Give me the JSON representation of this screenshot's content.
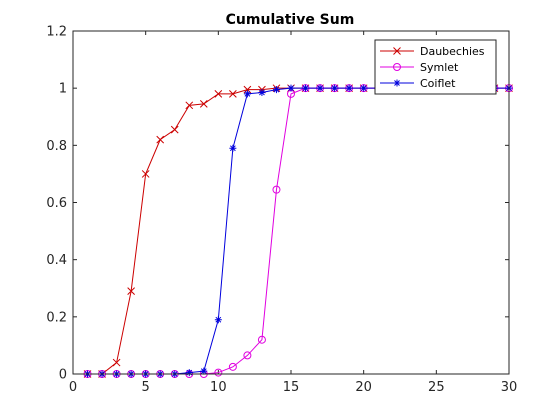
{
  "chart_data": {
    "type": "line",
    "title": "Cumulative Sum",
    "xlabel": "",
    "ylabel": "",
    "xlim": [
      0,
      30
    ],
    "ylim": [
      0,
      1.2
    ],
    "xticks": [
      "0",
      "5",
      "10",
      "15",
      "20",
      "25",
      "30"
    ],
    "yticks": [
      "0",
      "0.2",
      "0.4",
      "0.6",
      "0.8",
      "1",
      "1.2"
    ],
    "grid": false,
    "legend": "top-right",
    "x": [
      1,
      2,
      3,
      4,
      5,
      6,
      7,
      8,
      9,
      10,
      11,
      12,
      13,
      14,
      15,
      16,
      17,
      18,
      19,
      20,
      21,
      22,
      23,
      24,
      25,
      26,
      27,
      28,
      29,
      30
    ],
    "series": [
      {
        "name": "Daubechies",
        "color": "#cc0000",
        "marker": "x",
        "values": [
          0,
          0,
          0.04,
          0.29,
          0.7,
          0.82,
          0.855,
          0.94,
          0.945,
          0.98,
          0.98,
          0.995,
          0.995,
          1,
          1,
          1,
          1,
          1,
          1,
          1,
          1,
          1,
          1,
          1,
          1,
          1,
          1,
          1,
          1,
          1
        ]
      },
      {
        "name": "Symlet",
        "color": "#e000e0",
        "marker": "circle",
        "values": [
          0,
          0,
          0,
          0,
          0,
          0,
          0,
          0,
          0,
          0.005,
          0.025,
          0.065,
          0.12,
          0.645,
          0.98,
          1,
          1,
          1,
          1,
          1,
          1,
          1,
          1,
          1,
          1,
          1,
          1,
          1,
          1,
          1
        ]
      },
      {
        "name": "Coiflet",
        "color": "#0000dd",
        "marker": "star",
        "values": [
          0,
          0,
          0,
          0,
          0,
          0,
          0,
          0.005,
          0.01,
          0.19,
          0.79,
          0.98,
          0.985,
          0.995,
          1,
          1,
          1,
          1,
          1,
          1,
          1,
          1,
          1,
          1,
          1,
          1,
          1,
          1,
          1,
          1
        ]
      }
    ]
  }
}
